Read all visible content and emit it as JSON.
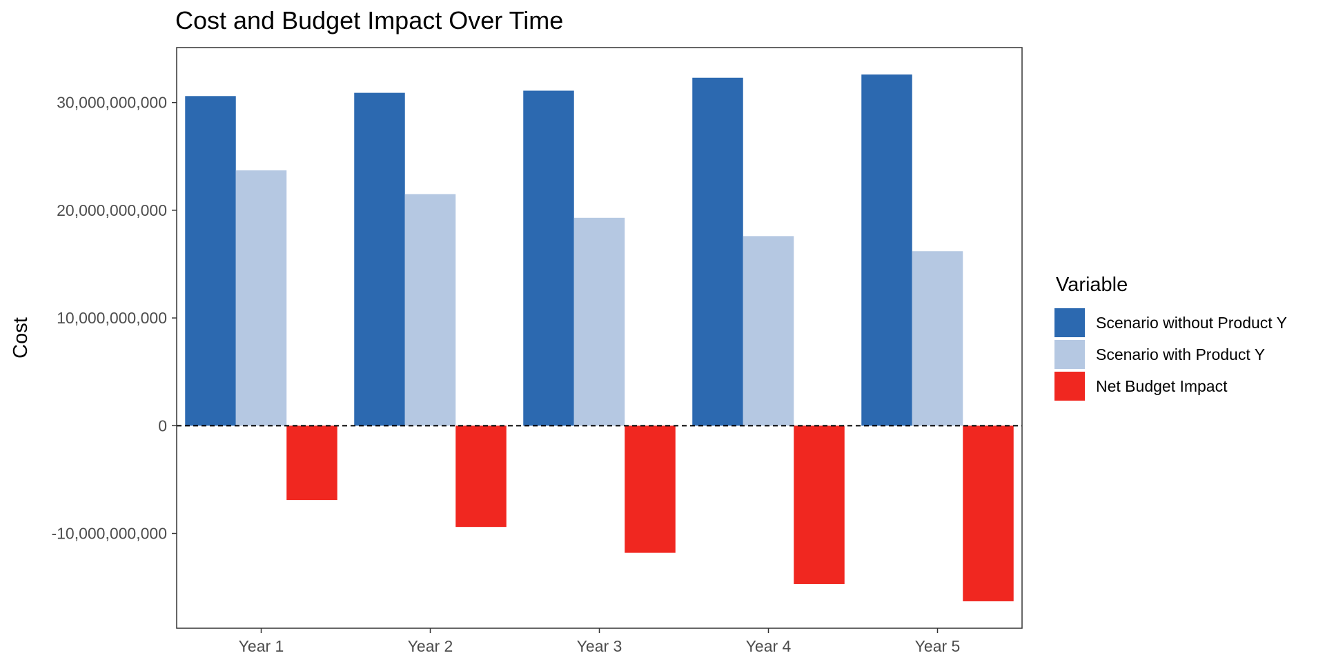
{
  "chart_data": {
    "type": "bar",
    "title": "Cost and Budget Impact Over Time",
    "xlabel": "",
    "ylabel": "Cost",
    "categories": [
      "Year 1",
      "Year 2",
      "Year 3",
      "Year 4",
      "Year 5"
    ],
    "series": [
      {
        "name": "Scenario without Product Y",
        "color": "#2c69b0",
        "values": [
          30600000000,
          30900000000,
          31100000000,
          32300000000,
          32600000000
        ]
      },
      {
        "name": "Scenario with Product Y",
        "color": "#b5c8e2",
        "values": [
          23700000000,
          21500000000,
          19300000000,
          17600000000,
          16200000000
        ]
      },
      {
        "name": "Net Budget Impact",
        "color": "#f02720",
        "values": [
          -6900000000,
          -9400000000,
          -11800000000,
          -14700000000,
          -16300000000
        ]
      }
    ],
    "ylim": [
      -18800000000,
      35100000000
    ],
    "yticks": [
      -10000000000,
      0,
      10000000000,
      20000000000,
      30000000000
    ],
    "ytick_labels": [
      "-10,000,000,000",
      "0",
      "10,000,000,000",
      "20,000,000,000",
      "30,000,000,000"
    ],
    "reference_line": {
      "y": 0,
      "style": "dashed"
    },
    "grid": false,
    "legend": {
      "title": "Variable",
      "position": "right"
    }
  }
}
